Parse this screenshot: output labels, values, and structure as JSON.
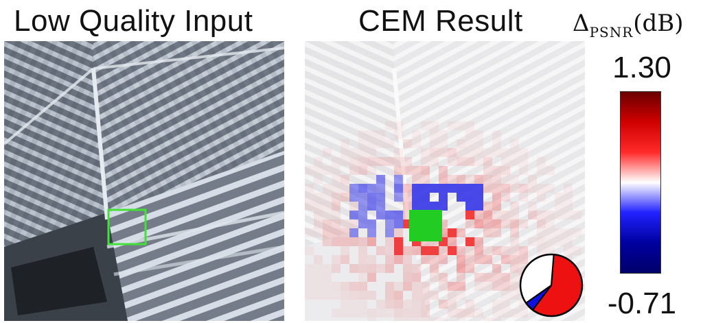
{
  "titles": {
    "left": "Low Quality Input",
    "right": "CEM Result"
  },
  "colorbar": {
    "label_symbol": "Δ",
    "label_subscript": "PSNR",
    "label_unit": "(dB)",
    "max_label": "1.30",
    "min_label": "-0.71",
    "max_value": 1.3,
    "min_value": -0.71,
    "colors": [
      "#6b0000",
      "#d00000",
      "#ff2a2a",
      "#ffffff",
      "#2222ff",
      "#0000a0",
      "#00006b"
    ]
  },
  "highlight": {
    "box_color": "#44e03a",
    "fill_color": "#22cc22"
  },
  "pie": {
    "slices": [
      {
        "name": "positive",
        "fraction": 0.59,
        "color": "#ee1111"
      },
      {
        "name": "negative",
        "fraction": 0.05,
        "color": "#1111dd"
      },
      {
        "name": "neutral",
        "fraction": 0.36,
        "color": "#ffffff"
      }
    ]
  }
}
